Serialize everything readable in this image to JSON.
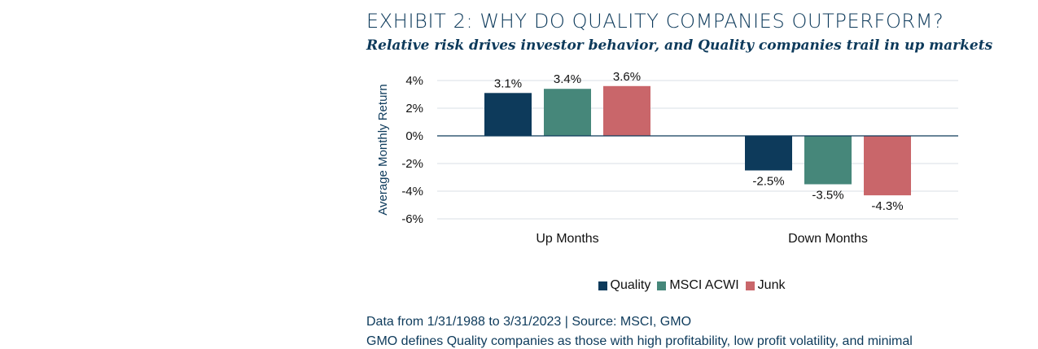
{
  "title": "EXHIBIT 2: WHY DO QUALITY COMPANIES OUTPERFORM?",
  "subtitle": "Relative risk drives investor behavior, and Quality companies trail in up markets",
  "source_text": "Data from 1/31/1988 to 3/31/2023 | Source: MSCI, GMO",
  "note_text": "GMO defines Quality companies as those with high profitability, low profit volatility, and minimal",
  "chart_data": {
    "type": "bar",
    "title": "EXHIBIT 2: WHY DO QUALITY COMPANIES OUTPERFORM?",
    "subtitle": "Relative risk drives investor behavior, and Quality companies trail in up markets",
    "xlabel": "",
    "ylabel": "Average Monthly Return",
    "categories": [
      "Up Months",
      "Down Months"
    ],
    "series": [
      {
        "name": "Quality",
        "values": [
          3.1,
          -2.5
        ],
        "labels": [
          "3.1%",
          "-2.5%"
        ],
        "color": "#0d3a5b"
      },
      {
        "name": "MSCI ACWI",
        "values": [
          3.4,
          -3.5
        ],
        "labels": [
          "3.4%",
          "-3.5%"
        ],
        "color": "#46877a"
      },
      {
        "name": "Junk",
        "values": [
          3.6,
          -4.3
        ],
        "labels": [
          "3.6%",
          "-4.3%"
        ],
        "color": "#c9666a"
      }
    ],
    "ylim": [
      -6,
      4
    ],
    "yticks": [
      4,
      2,
      0,
      -2,
      -4,
      -6
    ],
    "ytick_labels": [
      "4%",
      "2%",
      "0%",
      "-2%",
      "-4%",
      "-6%"
    ],
    "grid": true,
    "legend_position": "bottom"
  }
}
